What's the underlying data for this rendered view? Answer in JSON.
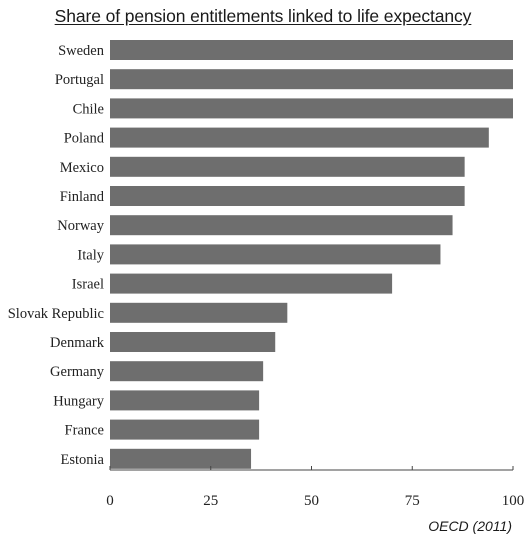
{
  "chart_data": {
    "type": "bar",
    "orientation": "horizontal",
    "title": "Share of pension entitlements linked to life expectancy",
    "source": "OECD (2011)",
    "categories": [
      "Sweden",
      "Portugal",
      "Chile",
      "Poland",
      "Mexico",
      "Finland",
      "Norway",
      "Italy",
      "Israel",
      "Slovak Republic",
      "Denmark",
      "Germany",
      "Hungary",
      "France",
      "Estonia"
    ],
    "values": [
      100,
      100,
      100,
      94,
      88,
      88,
      85,
      82,
      70,
      44,
      41,
      38,
      37,
      37,
      35
    ],
    "xlim": [
      0,
      100
    ],
    "xticks": [
      0,
      25,
      50,
      75,
      100
    ],
    "xlabel": "",
    "ylabel": "",
    "grid": false,
    "bar_color": "#6e6e6e"
  }
}
